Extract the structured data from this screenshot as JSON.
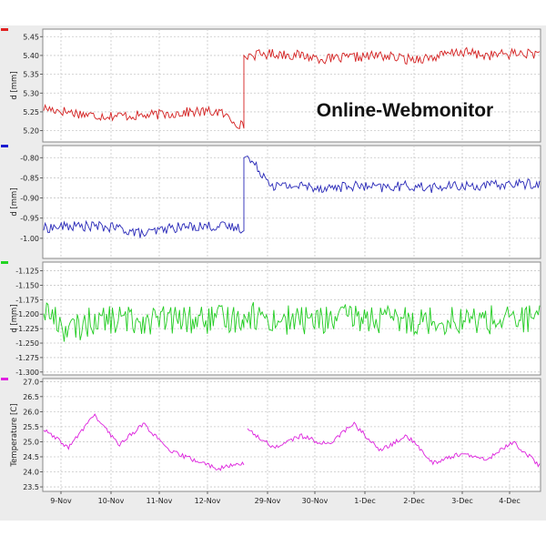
{
  "watermark": "Online-Webmonitor",
  "x_ticks": [
    "9-Nov",
    "10-Nov",
    "11-Nov",
    "12-Nov",
    "29-Nov",
    "30-Nov",
    "1-Dec",
    "2-Dec",
    "3-Dec",
    "4-Dec"
  ],
  "chart_data": [
    {
      "type": "line",
      "ylabel": "d [mm]",
      "color": "#d42020",
      "legend_marker_color": "#e02020",
      "ylim": [
        5.17,
        5.47
      ],
      "yticks": [
        "5.45",
        "5.40",
        "5.35",
        "5.30",
        "5.25",
        "5.20"
      ],
      "grid": true,
      "series": [
        {
          "x": [
            "9-Nov",
            "9.5-Nov",
            "10-Nov",
            "10.5-Nov",
            "11-Nov",
            "11.5-Nov",
            "12-Nov",
            "12.5-Nov",
            "12.8-Nov",
            "29-Nov",
            "29.5-Nov",
            "30-Nov",
            "30.5-Nov",
            "1-Dec",
            "1.5-Dec",
            "2-Dec",
            "2.5-Dec",
            "3-Dec",
            "3.5-Dec",
            "4-Dec",
            "4.5-Dec"
          ],
          "values": [
            5.26,
            5.25,
            5.24,
            5.24,
            5.24,
            5.245,
            5.25,
            5.25,
            5.21,
            5.4,
            5.405,
            5.4,
            5.39,
            5.395,
            5.4,
            5.39,
            5.395,
            5.41,
            5.4,
            5.405,
            5.405
          ]
        }
      ]
    },
    {
      "type": "line",
      "ylabel": "d [mm]",
      "color": "#2828b8",
      "legend_marker_color": "#1a1ad0",
      "ylim": [
        -1.05,
        -0.77
      ],
      "yticks": [
        "-0.80",
        "-0.85",
        "-0.90",
        "-0.95",
        "-1.00"
      ],
      "grid": true,
      "series": [
        {
          "x": [
            "9-Nov",
            "9.5-Nov",
            "10-Nov",
            "10.5-Nov",
            "11-Nov",
            "11.5-Nov",
            "12-Nov",
            "12.5-Nov",
            "12.8-Nov",
            "29-Nov",
            "29.5-Nov",
            "30-Nov",
            "30.5-Nov",
            "1-Dec",
            "1.5-Dec",
            "2-Dec",
            "2.5-Dec",
            "3-Dec",
            "3.5-Dec",
            "4-Dec",
            "4.5-Dec"
          ],
          "values": [
            -0.975,
            -0.97,
            -0.97,
            -0.975,
            -0.99,
            -0.975,
            -0.97,
            -0.97,
            -0.975,
            -0.8,
            -0.87,
            -0.87,
            -0.875,
            -0.87,
            -0.875,
            -0.87,
            -0.875,
            -0.87,
            -0.87,
            -0.865,
            -0.865
          ]
        }
      ]
    },
    {
      "type": "line",
      "ylabel": "d [mm]",
      "color": "#22cc22",
      "legend_marker_color": "#22d422",
      "ylim": [
        -1.305,
        -1.11
      ],
      "yticks": [
        "-1.125",
        "-1.150",
        "-1.175",
        "-1.200",
        "-1.225",
        "-1.250",
        "-1.275",
        "-1.300"
      ],
      "grid": true,
      "series": [
        {
          "x": [
            "9-Nov",
            "9.5-Nov",
            "10-Nov",
            "10.5-Nov",
            "11-Nov",
            "11.5-Nov",
            "12-Nov",
            "12.5-Nov",
            "12.8-Nov",
            "29-Nov",
            "29.5-Nov",
            "30-Nov",
            "30.5-Nov",
            "1-Dec",
            "1.5-Dec",
            "2-Dec",
            "2.5-Dec",
            "3-Dec",
            "3.5-Dec",
            "4-Dec",
            "4.5-Dec"
          ],
          "values": [
            -1.19,
            -1.23,
            -1.21,
            -1.21,
            -1.21,
            -1.21,
            -1.21,
            -1.21,
            -1.205,
            -1.2,
            -1.21,
            -1.21,
            -1.21,
            -1.205,
            -1.21,
            -1.21,
            -1.21,
            -1.21,
            -1.21,
            -1.21,
            -1.205
          ]
        }
      ]
    },
    {
      "type": "line",
      "ylabel": "Temperature [C]",
      "color": "#dd22dd",
      "legend_marker_color": "#e020e0",
      "ylim": [
        23.35,
        27.1
      ],
      "yticks": [
        "27.0",
        "26.5",
        "26.0",
        "25.5",
        "25.0",
        "24.5",
        "24.0",
        "23.5"
      ],
      "grid": true,
      "series": [
        {
          "x": [
            "9-Nov",
            "9.5-Nov",
            "10-Nov",
            "10.5-Nov",
            "11-Nov",
            "11.5-Nov",
            "12-Nov",
            "12.5-Nov",
            "12.8-Nov",
            "29-Nov",
            "29.5-Nov",
            "30-Nov",
            "30.5-Nov",
            "1-Dec",
            "1.5-Dec",
            "2-Dec",
            "2.5-Dec",
            "3-Dec",
            "3.5-Dec",
            "4-Dec",
            "4.5-Dec"
          ],
          "values": [
            25.4,
            24.8,
            25.9,
            24.9,
            25.6,
            24.7,
            24.4,
            24.1,
            24.3,
            25.4,
            24.8,
            25.2,
            24.9,
            25.6,
            24.7,
            25.2,
            24.3,
            24.6,
            24.4,
            25.0,
            24.2
          ]
        }
      ]
    }
  ]
}
